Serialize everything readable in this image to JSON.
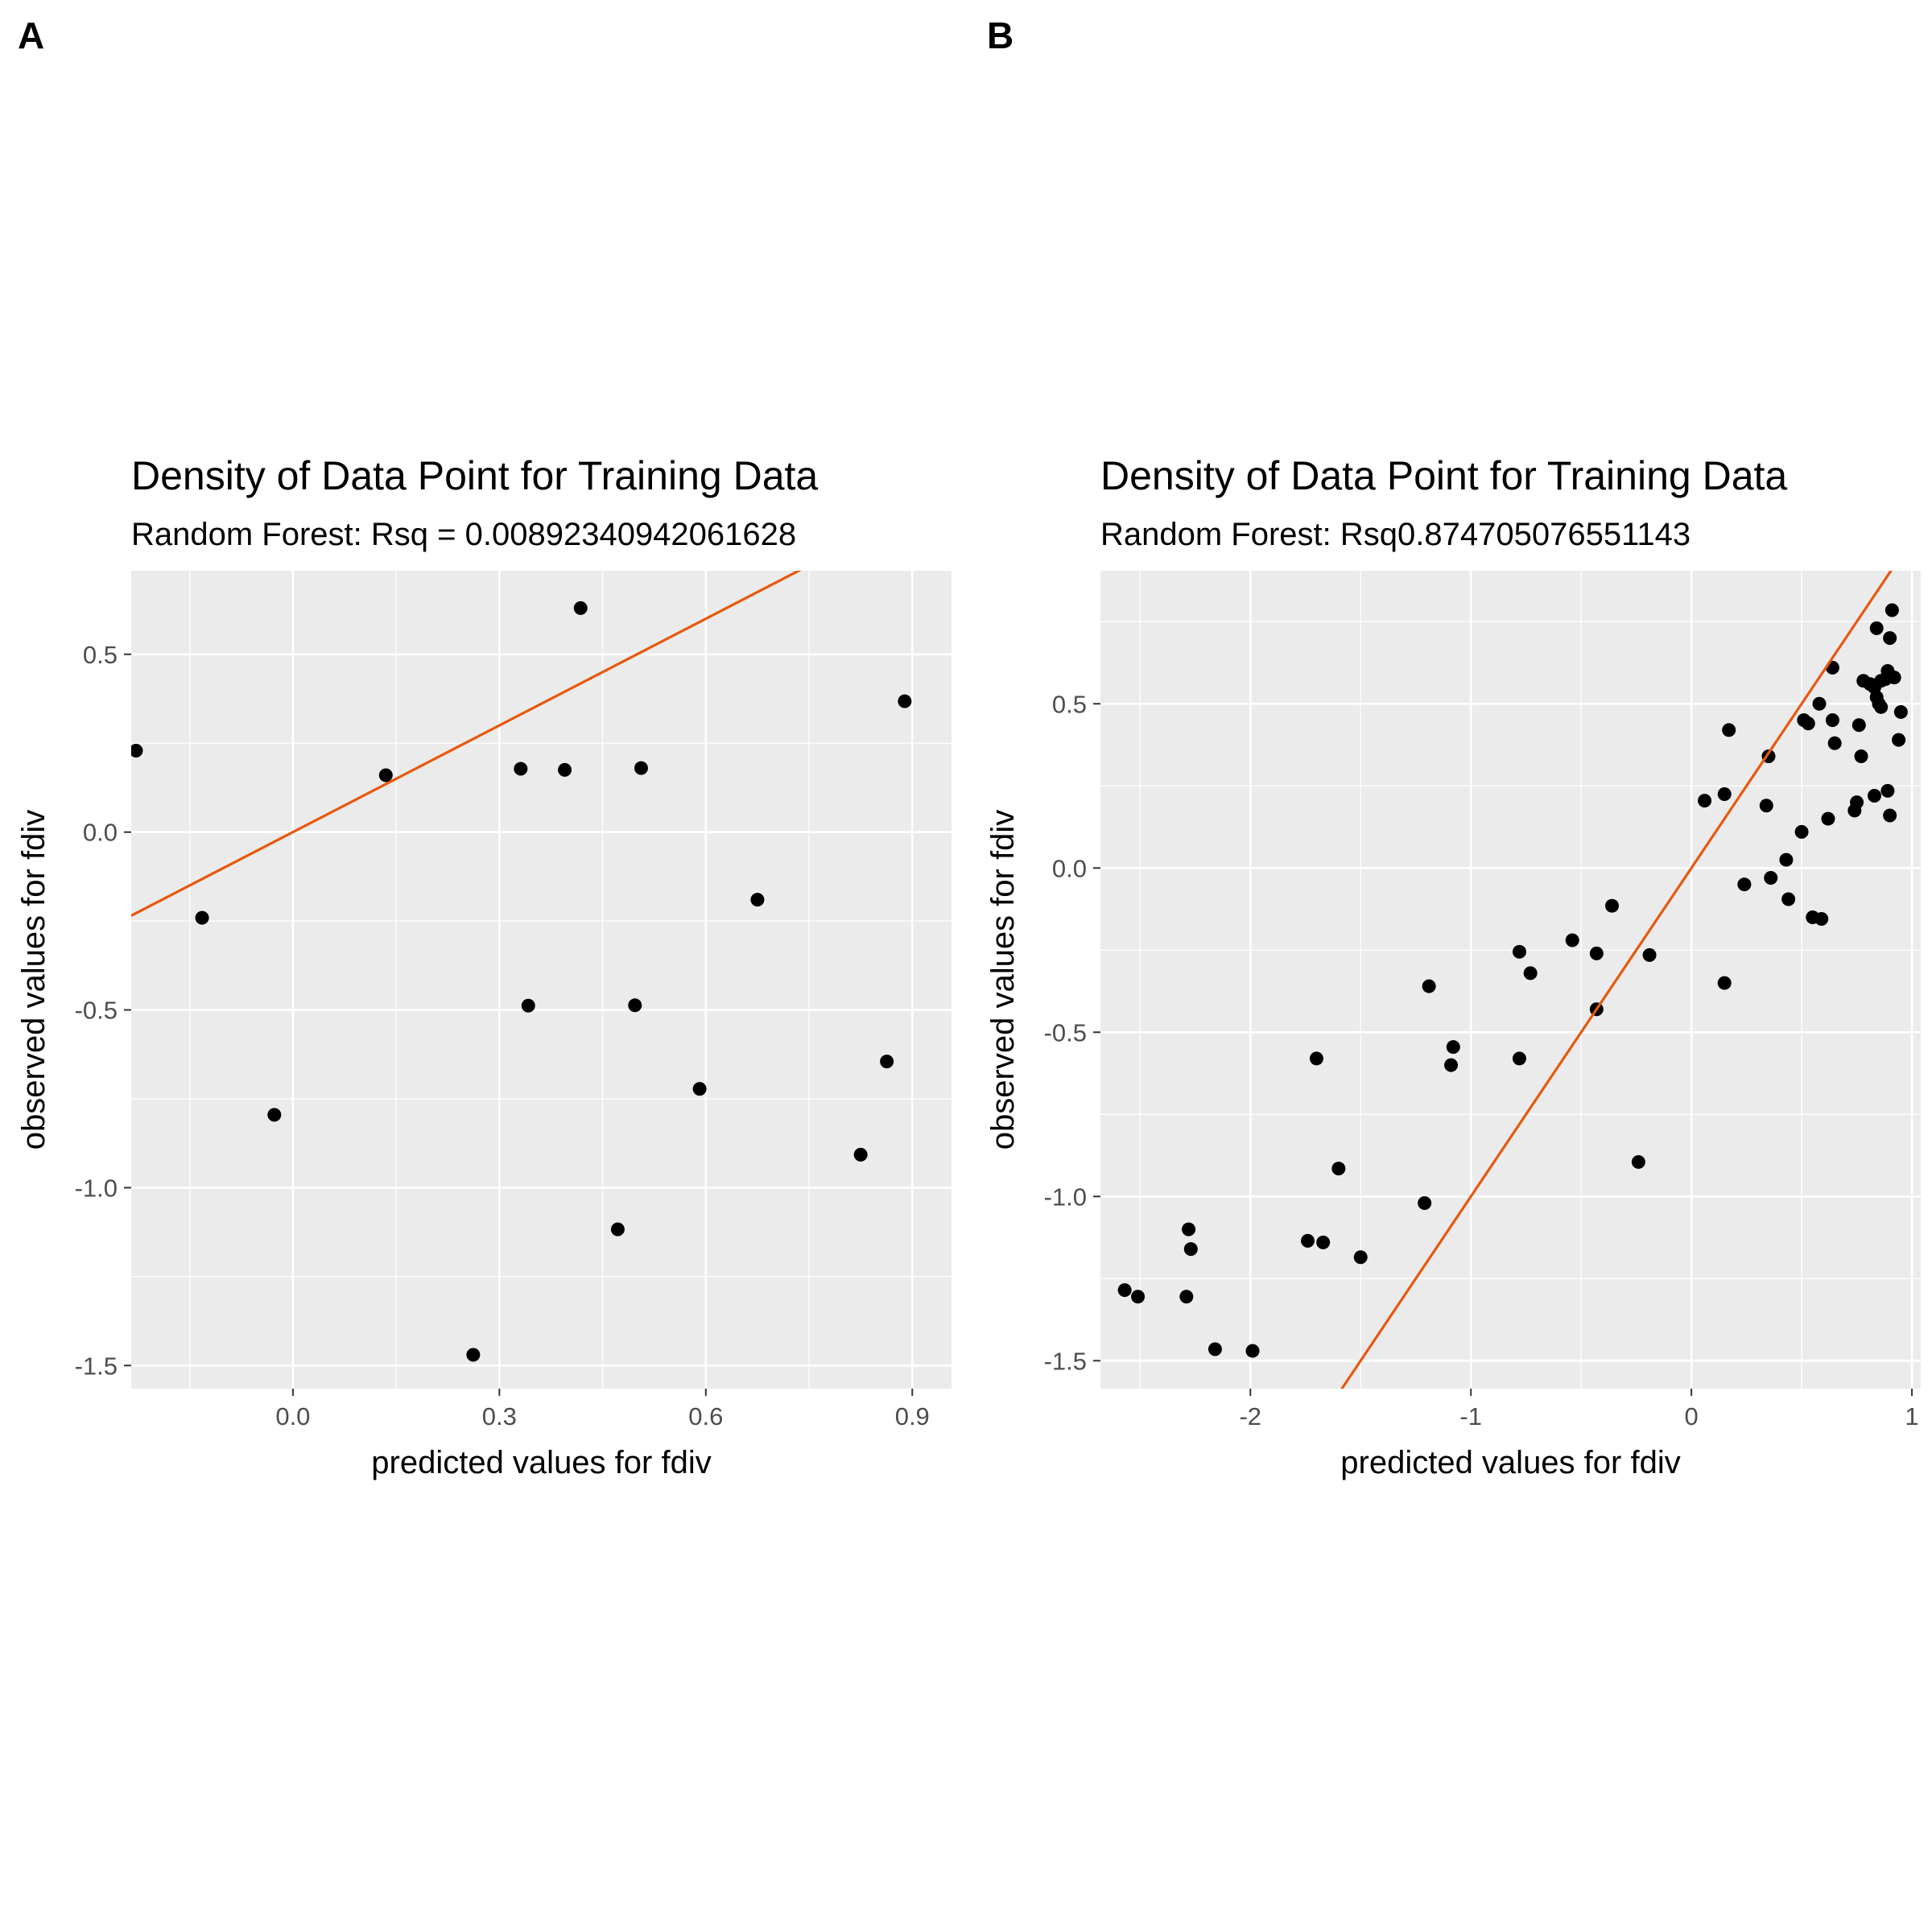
{
  "colors": {
    "panel_bg": "#ebebeb",
    "grid": "#ffffff",
    "point": "#000000",
    "line": "#e8580c"
  },
  "chart_data": [
    {
      "panel_label": "A",
      "type": "scatter",
      "title": "Density of Data Point for Training Data",
      "subtitle": "Random Forest: Rsq = 0.00892340942061628",
      "xlabel": "predicted values for fdiv",
      "ylabel": "observed values for fdiv",
      "xlim": [
        -0.235,
        0.957
      ],
      "ylim": [
        -1.565,
        0.735
      ],
      "xticks": [
        0.0,
        0.3,
        0.6,
        0.9
      ],
      "xtick_labels": [
        "0.0",
        "0.3",
        "0.6",
        "0.9"
      ],
      "yticks": [
        0.5,
        0.0,
        -0.5,
        -1.0,
        -1.5
      ],
      "ytick_labels": [
        "0.5",
        "0.0",
        "-0.5",
        "-1.0",
        "-1.5"
      ],
      "line": {
        "slope": 1,
        "intercept": 0
      },
      "grid": true,
      "points": [
        [
          -0.228,
          0.229
        ],
        [
          -0.132,
          -0.241
        ],
        [
          -0.027,
          -0.795
        ],
        [
          0.135,
          0.16
        ],
        [
          0.262,
          -1.47
        ],
        [
          0.331,
          0.178
        ],
        [
          0.342,
          -0.488
        ],
        [
          0.395,
          0.175
        ],
        [
          0.418,
          0.63
        ],
        [
          0.472,
          -1.117
        ],
        [
          0.497,
          -0.487
        ],
        [
          0.506,
          0.18
        ],
        [
          0.591,
          -0.722
        ],
        [
          0.675,
          -0.19
        ],
        [
          0.825,
          -0.907
        ],
        [
          0.863,
          -0.645
        ],
        [
          0.889,
          0.368
        ]
      ]
    },
    {
      "panel_label": "B",
      "type": "scatter",
      "title": "Density of Data Point for Training Data",
      "subtitle": "Random Forest: Rsq0.874705076551143",
      "xlabel": "predicted values for fdiv",
      "ylabel": "observed values for fdiv",
      "xlim": [
        -2.68,
        1.04
      ],
      "ylim": [
        -1.585,
        0.905
      ],
      "xticks": [
        -2,
        -1,
        0,
        1
      ],
      "xtick_labels": [
        "-2",
        "-1",
        "0",
        "1"
      ],
      "yticks": [
        0.5,
        0.0,
        -0.5,
        -1.0,
        -1.5
      ],
      "ytick_labels": [
        "0.5",
        "0.0",
        "-0.5",
        "-1.0",
        "-1.5"
      ],
      "line": {
        "slope": 1,
        "intercept": 0
      },
      "grid": true,
      "points": [
        [
          -2.57,
          -1.285
        ],
        [
          -2.51,
          -1.305
        ],
        [
          -2.29,
          -1.305
        ],
        [
          -2.28,
          -1.1
        ],
        [
          -2.27,
          -1.16
        ],
        [
          -2.16,
          -1.465
        ],
        [
          -1.99,
          -1.47
        ],
        [
          -1.74,
          -1.135
        ],
        [
          -1.7,
          -0.58
        ],
        [
          -1.67,
          -1.14
        ],
        [
          -1.6,
          -0.915
        ],
        [
          -1.5,
          -1.185
        ],
        [
          -1.21,
          -1.02
        ],
        [
          -1.19,
          -0.36
        ],
        [
          -1.09,
          -0.6
        ],
        [
          -1.08,
          -0.545
        ],
        [
          -0.78,
          -0.255
        ],
        [
          -0.78,
          -0.58
        ],
        [
          -0.73,
          -0.32
        ],
        [
          -0.54,
          -0.22
        ],
        [
          -0.43,
          -0.43
        ],
        [
          -0.43,
          -0.26
        ],
        [
          -0.24,
          -0.895
        ],
        [
          -0.36,
          -0.115
        ],
        [
          -0.19,
          -0.265
        ],
        [
          0.06,
          0.205
        ],
        [
          0.15,
          0.225
        ],
        [
          0.15,
          -0.35
        ],
        [
          0.17,
          0.42
        ],
        [
          0.24,
          -0.05
        ],
        [
          0.34,
          0.19
        ],
        [
          0.35,
          0.34
        ],
        [
          0.36,
          -0.03
        ],
        [
          0.43,
          0.025
        ],
        [
          0.44,
          -0.095
        ],
        [
          0.5,
          0.11
        ],
        [
          0.51,
          0.45
        ],
        [
          0.53,
          0.44
        ],
        [
          0.55,
          -0.15
        ],
        [
          0.58,
          0.5
        ],
        [
          0.59,
          -0.155
        ],
        [
          0.62,
          0.15
        ],
        [
          0.64,
          0.61
        ],
        [
          0.64,
          0.45
        ],
        [
          0.65,
          0.38
        ],
        [
          0.74,
          0.175
        ],
        [
          0.75,
          0.2
        ],
        [
          0.76,
          0.435
        ],
        [
          0.77,
          0.34
        ],
        [
          0.78,
          0.57
        ],
        [
          0.81,
          0.56
        ],
        [
          0.83,
          0.55
        ],
        [
          0.83,
          0.22
        ],
        [
          0.84,
          0.73
        ],
        [
          0.84,
          0.52
        ],
        [
          0.85,
          0.5
        ],
        [
          0.86,
          0.49
        ],
        [
          0.86,
          0.57
        ],
        [
          0.88,
          0.575
        ],
        [
          0.89,
          0.6
        ],
        [
          0.89,
          0.235
        ],
        [
          0.9,
          0.7
        ],
        [
          0.9,
          0.16
        ],
        [
          0.91,
          0.785
        ],
        [
          0.92,
          0.58
        ],
        [
          0.94,
          0.39
        ],
        [
          0.95,
          0.475
        ]
      ]
    }
  ]
}
